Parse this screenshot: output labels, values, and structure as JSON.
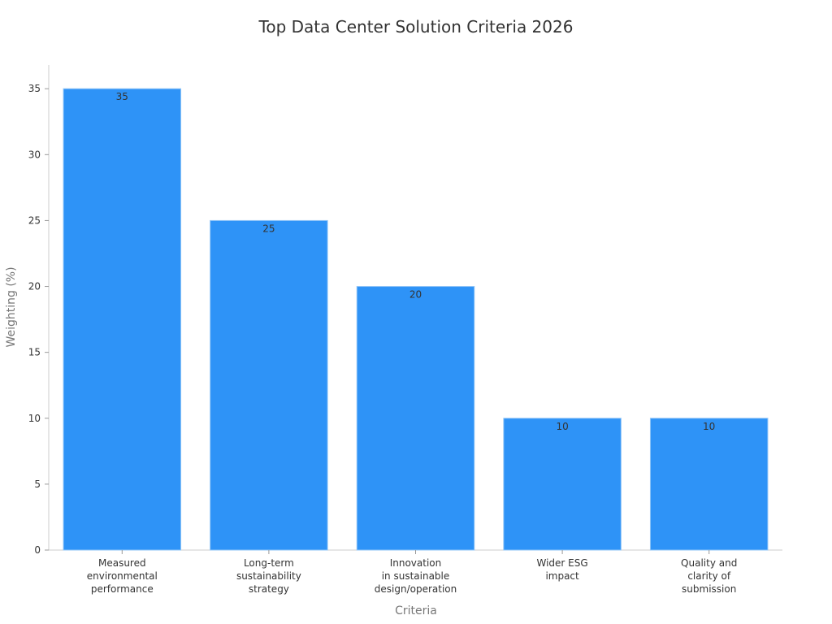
{
  "chart_data": {
    "type": "bar",
    "title": "Top Data Center Solution Criteria 2026",
    "x_label": "Criteria",
    "y_label": "Weighting (%)",
    "categories": [
      "Measured\nenvironmental\nperformance",
      "Long-term\nsustainability\nstrategy",
      "Innovation\nin sustainable\ndesign/operation",
      "Wider ESG\nimpact",
      "Quality and\nclarity of\nsubmission"
    ],
    "values": [
      35,
      25,
      20,
      10,
      10
    ],
    "color": "#2e93f7",
    "ylim": [
      0,
      36.8
    ],
    "yticks": [
      0,
      5,
      10,
      15,
      20,
      25,
      30,
      35
    ],
    "grid": false
  }
}
